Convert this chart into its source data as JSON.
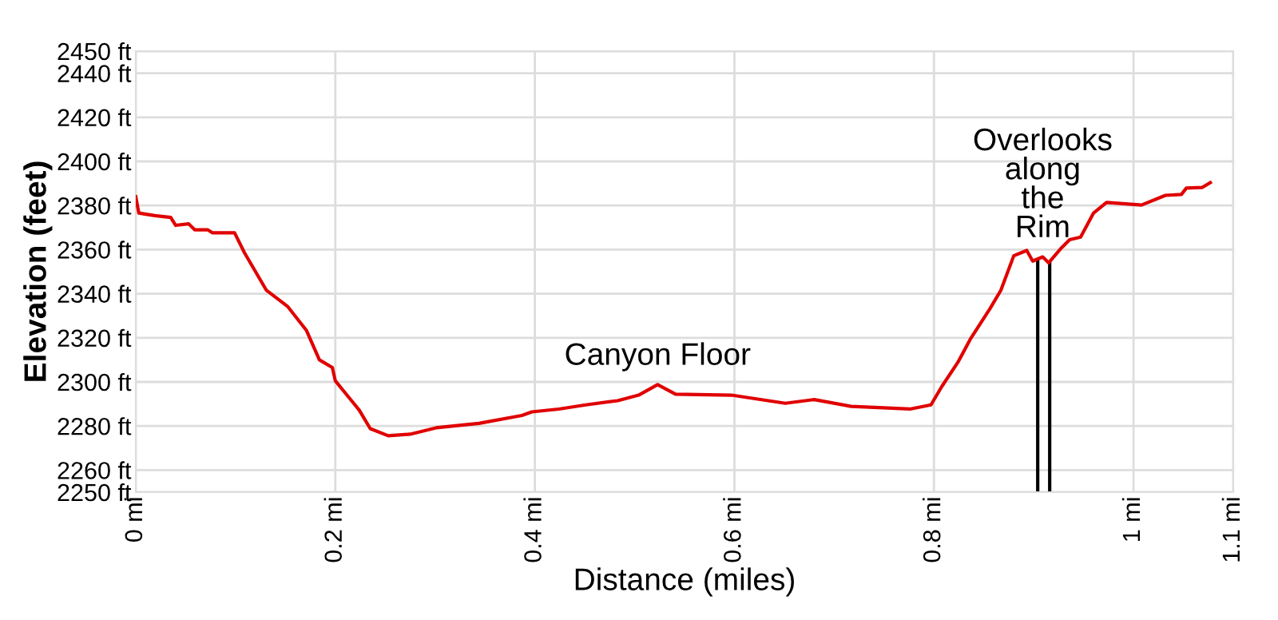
{
  "chart_data": {
    "type": "line",
    "xlabel": "Distance (miles)",
    "ylabel": "Elevation (feet)",
    "xlim": [
      0,
      1.1
    ],
    "ylim": [
      2250,
      2450
    ],
    "xticks": [
      {
        "value": 0,
        "label": "0 mi"
      },
      {
        "value": 0.2,
        "label": "0.2 mi"
      },
      {
        "value": 0.4,
        "label": "0.4 mi"
      },
      {
        "value": 0.6,
        "label": "0.6 mi"
      },
      {
        "value": 0.8,
        "label": "0.8 mi"
      },
      {
        "value": 1,
        "label": "1 mi"
      },
      {
        "value": 1.1,
        "label": "1.1 mi"
      }
    ],
    "yticks": [
      {
        "value": 2250,
        "label": "2250 ft"
      },
      {
        "value": 2260,
        "label": "2260 ft"
      },
      {
        "value": 2280,
        "label": "2280 ft"
      },
      {
        "value": 2300,
        "label": "2300 ft"
      },
      {
        "value": 2320,
        "label": "2320 ft"
      },
      {
        "value": 2340,
        "label": "2340 ft"
      },
      {
        "value": 2360,
        "label": "2360 ft"
      },
      {
        "value": 2380,
        "label": "2380 ft"
      },
      {
        "value": 2400,
        "label": "2400 ft"
      },
      {
        "value": 2420,
        "label": "2420 ft"
      },
      {
        "value": 2440,
        "label": "2440 ft"
      },
      {
        "value": 2450,
        "label": "2450 ft"
      }
    ],
    "grid": true,
    "marker": "none",
    "line_style": "solid",
    "series": [
      {
        "color": "#e00000",
        "x": [
          0,
          0.003,
          0.019,
          0.035,
          0.04,
          0.053,
          0.059,
          0.072,
          0.077,
          0.099,
          0.109,
          0.131,
          0.152,
          0.171,
          0.184,
          0.197,
          0.2,
          0.211,
          0.224,
          0.235,
          0.253,
          0.275,
          0.301,
          0.344,
          0.387,
          0.397,
          0.424,
          0.451,
          0.483,
          0.504,
          0.523,
          0.541,
          0.597,
          0.651,
          0.68,
          0.717,
          0.776,
          0.797,
          0.808,
          0.824,
          0.837,
          0.856,
          0.867,
          0.88,
          0.893,
          0.899,
          0.909,
          0.915,
          0.928,
          0.936,
          0.947,
          0.96,
          0.973,
          1.008,
          1.032,
          1.048,
          1.053,
          1.069,
          1.077
        ],
        "values": [
          2384,
          2376.6,
          2375.4,
          2374.6,
          2371,
          2371.7,
          2369,
          2369,
          2367.6,
          2367.6,
          2358.5,
          2341.5,
          2334.3,
          2323.4,
          2310,
          2306.5,
          2300.5,
          2294.4,
          2287.2,
          2278.8,
          2275.6,
          2276.3,
          2279.2,
          2281.2,
          2284.8,
          2286.4,
          2287.7,
          2289.6,
          2291.5,
          2294,
          2298.8,
          2294.4,
          2294,
          2290.3,
          2292,
          2288.9,
          2287.7,
          2289.6,
          2298,
          2308.9,
          2319.8,
          2333.1,
          2341.5,
          2357.2,
          2359.6,
          2354.8,
          2356.7,
          2354,
          2360.9,
          2364.5,
          2365.7,
          2376.6,
          2381.4,
          2380.2,
          2384.6,
          2385,
          2387.9,
          2388.2,
          2390.4
        ]
      }
    ],
    "ref_lines": [
      {
        "axis": "x",
        "value": 0.904,
        "color": "#000000"
      },
      {
        "axis": "x",
        "value": 0.916,
        "color": "#000000"
      }
    ],
    "annotations": [
      {
        "text": "Canyon Floor",
        "x": 0.523,
        "y": 2298.8
      },
      {
        "text": "Overlooks\nalong\nthe\nRim",
        "x": 0.909,
        "y": 2356.7
      }
    ]
  }
}
